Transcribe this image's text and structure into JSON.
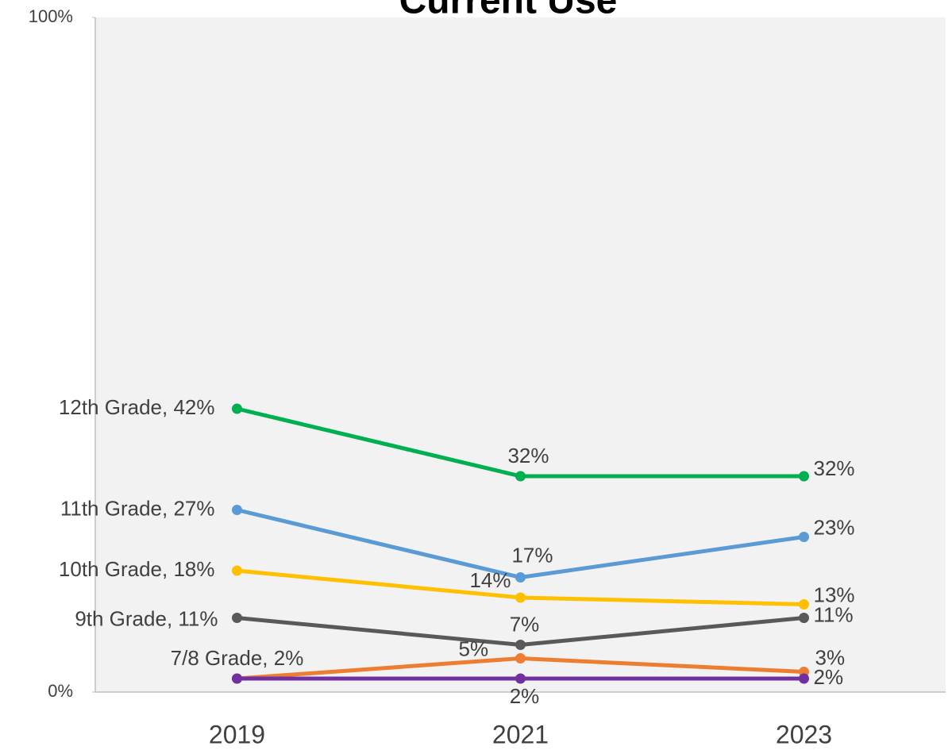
{
  "chart_data": {
    "type": "line",
    "title": "Current Use",
    "categories": [
      "2019",
      "2021",
      "2023"
    ],
    "ylim": [
      0,
      100
    ],
    "yticks": [
      {
        "value": 0,
        "label": "0%"
      },
      {
        "value": 100,
        "label": "100%"
      }
    ],
    "series": [
      {
        "name": "12th Grade",
        "color": "#00b050",
        "values": [
          42,
          32,
          32
        ],
        "value_labels": [
          "12th Grade, 42%",
          "32%",
          "32%"
        ]
      },
      {
        "name": "11th Grade",
        "color": "#5b9bd5",
        "values": [
          27,
          17,
          23
        ],
        "value_labels": [
          "11th Grade, 27%",
          "17%",
          "23%"
        ]
      },
      {
        "name": "10th Grade",
        "color": "#ffc000",
        "values": [
          18,
          14,
          13
        ],
        "value_labels": [
          "10th Grade, 18%",
          "14%",
          "13%"
        ]
      },
      {
        "name": "9th Grade",
        "color": "#595959",
        "values": [
          11,
          7,
          11
        ],
        "value_labels": [
          "9th Grade, 11%",
          "7%",
          "11%"
        ]
      },
      {
        "name": "7/8 Grade",
        "color": "#ed7d31",
        "values": [
          2,
          5,
          3
        ],
        "value_labels": [
          "7/8 Grade, 2%",
          "5%",
          "3%"
        ]
      },
      {
        "color": "#7030a0",
        "values": [
          2,
          2,
          2
        ],
        "value_labels": [
          null,
          "2%",
          "2%"
        ]
      }
    ]
  }
}
